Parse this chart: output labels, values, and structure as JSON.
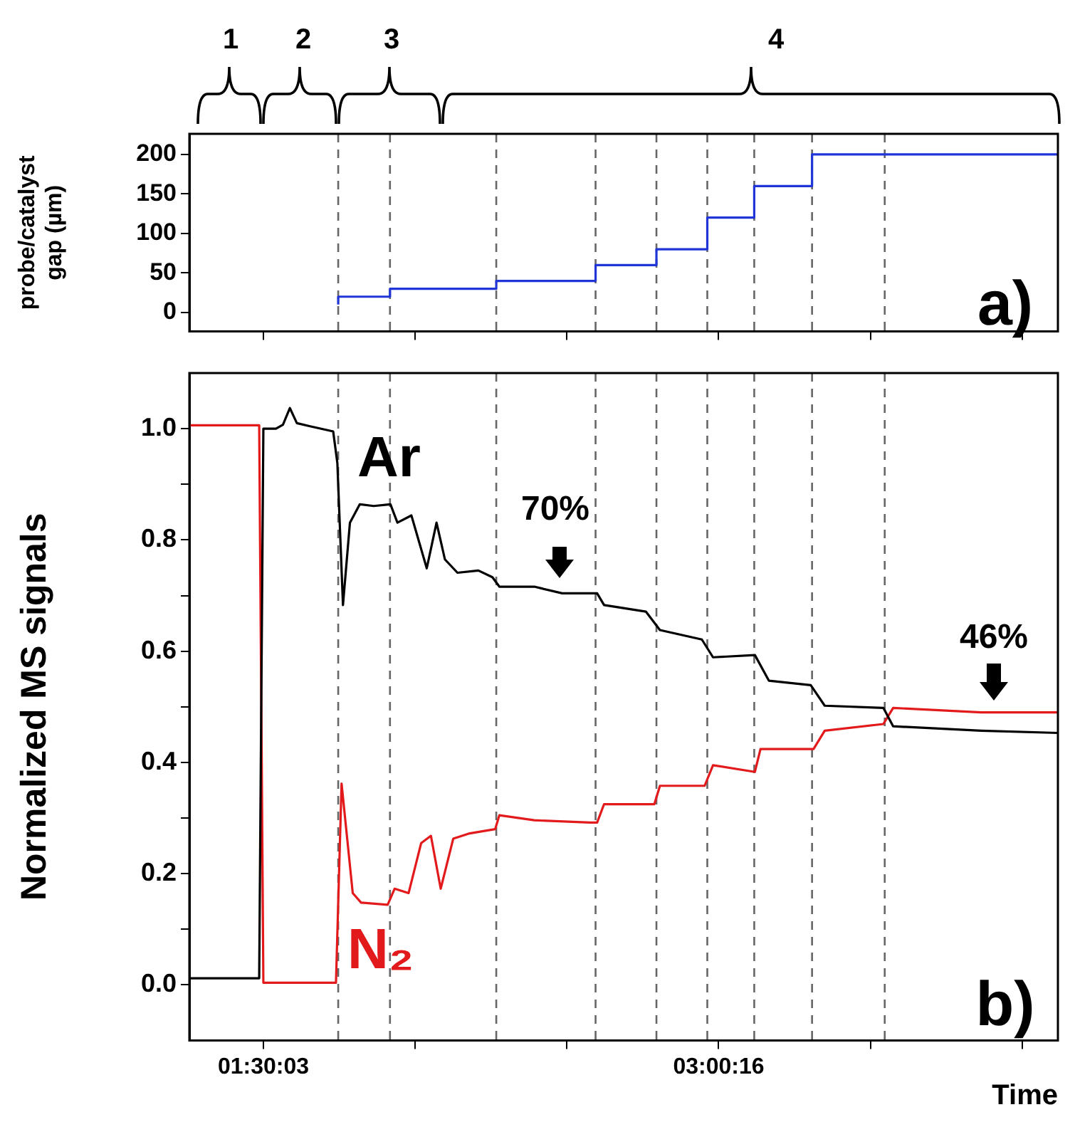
{
  "chart_data": [
    {
      "type": "step",
      "ylabel": "probe/catalyst gap (µm)",
      "x": [
        1.748,
        1.919,
        2.27,
        2.598,
        2.799,
        2.967,
        3.122,
        3.313,
        3.553,
        4.125
      ],
      "values": [
        10,
        20,
        30,
        40,
        60,
        80,
        120,
        160,
        200,
        200
      ],
      "color": "#1f35d8",
      "xlim": [
        1.2564,
        4.125
      ],
      "ylim": [
        -24,
        226
      ],
      "yticks": [
        0,
        50,
        100,
        150,
        200
      ],
      "xticks": [
        {
          "value": 1.5008,
          "label": null
        },
        {
          "value": 2.0021,
          "label": null
        },
        {
          "value": 2.5033,
          "label": null
        },
        {
          "value": 3.0044,
          "label": null
        },
        {
          "value": 3.5056,
          "label": null
        },
        {
          "value": 4.0067,
          "label": null
        }
      ],
      "tick_labels": "y",
      "grid": false,
      "legend": false,
      "ref_lines": [
        {
          "axis": "x",
          "value": 1.748,
          "color": "#666666",
          "line_style": "dashed"
        },
        {
          "axis": "x",
          "value": 1.919,
          "color": "#666666",
          "line_style": "dashed"
        },
        {
          "axis": "x",
          "value": 2.27,
          "color": "#666666",
          "line_style": "dashed"
        },
        {
          "axis": "x",
          "value": 2.598,
          "color": "#666666",
          "line_style": "dashed"
        },
        {
          "axis": "x",
          "value": 2.799,
          "color": "#666666",
          "line_style": "dashed"
        },
        {
          "axis": "x",
          "value": 2.967,
          "color": "#666666",
          "line_style": "dashed"
        },
        {
          "axis": "x",
          "value": 3.122,
          "color": "#666666",
          "line_style": "dashed"
        },
        {
          "axis": "x",
          "value": 3.313,
          "color": "#666666",
          "line_style": "dashed"
        },
        {
          "axis": "x",
          "value": 3.553,
          "color": "#666666",
          "line_style": "dashed"
        }
      ],
      "annotations": [
        "1",
        "2",
        "3",
        "4",
        "a)"
      ]
    },
    {
      "type": "line",
      "ylabel": "Normalized MS signals",
      "xlabel": "Time",
      "xlim": [
        1.2564,
        4.125
      ],
      "ylim": [
        -0.1,
        1.1
      ],
      "yticks": [
        {
          "value": 0,
          "label": "0.0"
        },
        {
          "value": 0.1,
          "label": null
        },
        {
          "value": 0.2,
          "label": "0.2"
        },
        {
          "value": 0.3,
          "label": null
        },
        {
          "value": 0.4,
          "label": "0.4"
        },
        {
          "value": 0.5,
          "label": null
        },
        {
          "value": 0.6,
          "label": "0.6"
        },
        {
          "value": 0.7,
          "label": null
        },
        {
          "value": 0.8,
          "label": "0.8"
        },
        {
          "value": 0.9,
          "label": null
        },
        {
          "value": 1.0,
          "label": "1.0"
        }
      ],
      "xticks": [
        {
          "value": 1.5008,
          "label": "01:30:03"
        },
        {
          "value": 2.0021,
          "label": null
        },
        {
          "value": 2.5033,
          "label": null
        },
        {
          "value": 3.0044,
          "label": "03:00:16"
        },
        {
          "value": 3.5056,
          "label": null
        },
        {
          "value": 4.0067,
          "label": null
        }
      ],
      "grid": false,
      "legend": false,
      "series": [
        {
          "name": "Ar",
          "color": "#000000",
          "x": [
            1.2564,
            1.487,
            1.5008,
            1.5423,
            1.5654,
            1.5884,
            1.6115,
            1.6576,
            1.7314,
            1.7452,
            1.7637,
            1.7867,
            1.819,
            1.8651,
            1.9205,
            1.9436,
            1.9897,
            2.0404,
            2.0727,
            2.1004,
            2.1419,
            2.211,
            2.2572,
            2.2802,
            2.3955,
            2.4878,
            2.6031,
            2.6261,
            2.7645,
            2.8106,
            2.949,
            2.9859,
            3.1242,
            3.1703,
            3.3087,
            3.3548,
            3.5485,
            3.5808,
            3.8714,
            4.125
          ],
          "values": [
            0.012,
            0.012,
            1.0,
            1.0,
            1.007,
            1.037,
            1.01,
            1.004,
            0.995,
            0.938,
            0.683,
            0.831,
            0.864,
            0.861,
            0.864,
            0.831,
            0.844,
            0.749,
            0.831,
            0.765,
            0.741,
            0.745,
            0.733,
            0.716,
            0.716,
            0.704,
            0.704,
            0.683,
            0.671,
            0.638,
            0.621,
            0.589,
            0.593,
            0.547,
            0.539,
            0.502,
            0.498,
            0.465,
            0.457,
            0.453
          ]
        },
        {
          "name": "N₂",
          "color": "#e31a1c",
          "x": [
            1.2564,
            1.487,
            1.5008,
            1.7406,
            1.7591,
            1.796,
            1.8236,
            1.9113,
            1.9343,
            1.9804,
            2.022,
            2.0542,
            2.0865,
            2.128,
            2.1788,
            2.2664,
            2.2802,
            2.3955,
            2.58,
            2.6031,
            2.6261,
            2.7922,
            2.8106,
            2.9582,
            2.9859,
            3.1242,
            3.1427,
            3.3179,
            3.3548,
            3.5485,
            3.5808,
            3.8714,
            4.125
          ],
          "values": [
            1.006,
            1.006,
            0.004,
            0.004,
            0.362,
            0.165,
            0.148,
            0.144,
            0.173,
            0.165,
            0.255,
            0.268,
            0.173,
            0.263,
            0.272,
            0.28,
            0.305,
            0.296,
            0.292,
            0.292,
            0.325,
            0.325,
            0.358,
            0.358,
            0.395,
            0.383,
            0.424,
            0.424,
            0.457,
            0.469,
            0.498,
            0.49,
            0.49
          ]
        }
      ],
      "ref_lines": [
        {
          "axis": "x",
          "value": 1.748,
          "color": "#666666",
          "line_style": "dashed"
        },
        {
          "axis": "x",
          "value": 1.919,
          "color": "#666666",
          "line_style": "dashed"
        },
        {
          "axis": "x",
          "value": 2.27,
          "color": "#666666",
          "line_style": "dashed"
        },
        {
          "axis": "x",
          "value": 2.598,
          "color": "#666666",
          "line_style": "dashed"
        },
        {
          "axis": "x",
          "value": 2.799,
          "color": "#666666",
          "line_style": "dashed"
        },
        {
          "axis": "x",
          "value": 2.967,
          "color": "#666666",
          "line_style": "dashed"
        },
        {
          "axis": "x",
          "value": 3.122,
          "color": "#666666",
          "line_style": "dashed"
        },
        {
          "axis": "x",
          "value": 3.313,
          "color": "#666666",
          "line_style": "dashed"
        },
        {
          "axis": "x",
          "value": 3.553,
          "color": "#666666",
          "line_style": "dashed"
        }
      ],
      "annotations": [
        "70%",
        "46%",
        "b)"
      ]
    }
  ]
}
